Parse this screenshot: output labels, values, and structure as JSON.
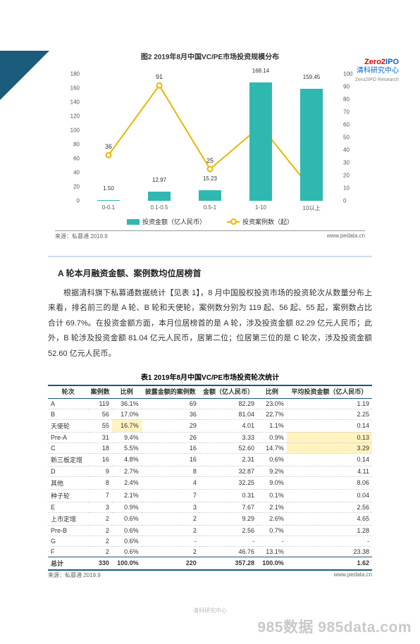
{
  "logo": {
    "brand_z2": "Zero2",
    "brand_ipo": "IPO",
    "cn": "清科研究中心",
    "en": "Zero2IPO Research"
  },
  "chart": {
    "title": "图2 2019年8月中国VC/PE市场投资规模分布",
    "type": "bar+line",
    "categories": [
      "0-0.1",
      "0.1-0.5",
      "0.5-1",
      "1-10",
      "10以上"
    ],
    "bars": {
      "label": "投资金额（亿人民币）",
      "values": [
        1.5,
        12.97,
        15.23,
        168.14,
        159.45
      ],
      "color": "#2fb8b0",
      "ylim": [
        0,
        180
      ],
      "ytick": [
        0,
        20,
        40,
        60,
        80,
        100,
        120,
        140,
        160,
        180
      ]
    },
    "line": {
      "label": "投资案例数（起）",
      "values": [
        36,
        91,
        25,
        59,
        9
      ],
      "color": "#e6b800",
      "ylim": [
        0,
        100
      ],
      "ytick": [
        0,
        10,
        20,
        30,
        40,
        50,
        60,
        70,
        80,
        90,
        100
      ]
    },
    "source": "来源：私募通 2019.9",
    "url": "www.pedata.cn"
  },
  "section": {
    "heading": "A 轮本月融资金额、案例数均位居榜首",
    "para": "根据清科旗下私募通数据统计【见表 1】，8 月中国股权投资市场的投资轮次从数量分布上来看，排名前三的是 A 轮、B 轮和天使轮，案例数分别为 119 起、56 起、55 起，案例数占比合计 69.7%。在投资金额方面，本月位居榜首的是 A 轮，涉及投资金额 82.29 亿元人民币；此外，B 轮涉及投资金额 81.04 亿元人民币，居第二位；位居第三位的是 C 轮次，涉及投资金额 52.60 亿元人民币。"
  },
  "table": {
    "title": "表1 2019年8月中国VC/PE市场投资轮次统计",
    "columns": [
      "轮次",
      "案例数",
      "比例",
      "披露金额的案例数",
      "金额（亿人民币）",
      "比例",
      "平均投资金额（亿人民币）"
    ],
    "rows": [
      {
        "c": [
          "A",
          "119",
          "36.1%",
          "69",
          "82.29",
          "23.0%",
          "1.19"
        ],
        "hl": []
      },
      {
        "c": [
          "B",
          "56",
          "17.0%",
          "36",
          "81.04",
          "22.7%",
          "2.25"
        ],
        "hl": []
      },
      {
        "c": [
          "天使轮",
          "55",
          "16.7%",
          "29",
          "4.01",
          "1.1%",
          "0.14"
        ],
        "hl": [
          2
        ]
      },
      {
        "c": [
          "Pre-A",
          "31",
          "9.4%",
          "26",
          "3.33",
          "0.9%",
          "0.13"
        ],
        "hl": [
          6
        ]
      },
      {
        "c": [
          "C",
          "18",
          "5.5%",
          "16",
          "52.60",
          "14.7%",
          "3.29"
        ],
        "hl": [
          6
        ]
      },
      {
        "c": [
          "新三板定增",
          "16",
          "4.8%",
          "16",
          "2.31",
          "0.6%",
          "0.14"
        ],
        "hl": []
      },
      {
        "c": [
          "D",
          "9",
          "2.7%",
          "8",
          "32.87",
          "9.2%",
          "4.11"
        ],
        "hl": []
      },
      {
        "c": [
          "其他",
          "8",
          "2.4%",
          "4",
          "32.25",
          "9.0%",
          "8.06"
        ],
        "hl": []
      },
      {
        "c": [
          "种子轮",
          "7",
          "2.1%",
          "7",
          "0.31",
          "0.1%",
          "0.04"
        ],
        "hl": []
      },
      {
        "c": [
          "E",
          "3",
          "0.9%",
          "3",
          "7.67",
          "2.1%",
          "2.56"
        ],
        "hl": []
      },
      {
        "c": [
          "上市定增",
          "2",
          "0.6%",
          "2",
          "9.29",
          "2.6%",
          "4.65"
        ],
        "hl": []
      },
      {
        "c": [
          "Pre-B",
          "2",
          "0.6%",
          "2",
          "2.56",
          "0.7%",
          "1.28"
        ],
        "hl": []
      },
      {
        "c": [
          "G",
          "2",
          "0.6%",
          "-",
          "-",
          "-",
          "-"
        ],
        "hl": []
      },
      {
        "c": [
          "F",
          "2",
          "0.6%",
          "2",
          "46.76",
          "13.1%",
          "23.38"
        ],
        "hl": []
      }
    ],
    "total": [
      "总计",
      "330",
      "100.0%",
      "220",
      "357.28",
      "100.0%",
      "1.62"
    ],
    "source": "来源：私募通 2019.9",
    "url": "www.pedata.cn"
  },
  "watermark": "985数据 985data.com",
  "footer_wm": "清科研究中心"
}
